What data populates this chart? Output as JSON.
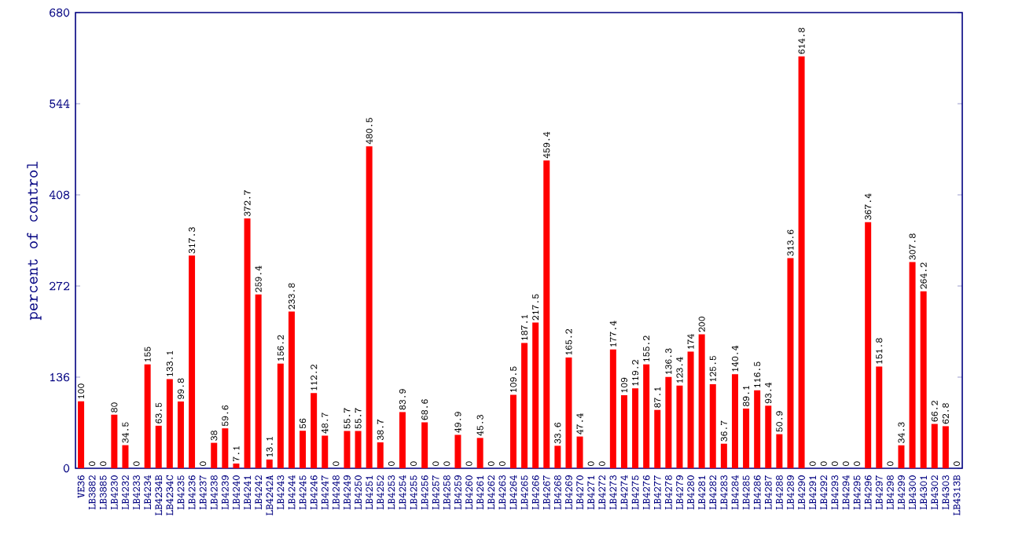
{
  "chart_data": {
    "type": "bar",
    "ylabel": "percent of control",
    "categories": [
      "VE36",
      "LB3882",
      "LB3885",
      "LB4230",
      "LB4232",
      "LB4233",
      "LB4234",
      "LB4234B",
      "LB4234C",
      "LB4235",
      "LB4236",
      "LB4237",
      "LB4238",
      "LB4239",
      "LB4240",
      "LB4241",
      "LB4242",
      "LB4242A",
      "LB4243",
      "LB4244",
      "LB4245",
      "LB4246",
      "LB4247",
      "LB4248",
      "LB4249",
      "LB4250",
      "LB4251",
      "LB4252",
      "LB4253",
      "LB4254",
      "LB4255",
      "LB4256",
      "LB4257",
      "LB4258",
      "LB4259",
      "LB4260",
      "LB4261",
      "LB4262",
      "LB4263",
      "LB4264",
      "LB4265",
      "LB4266",
      "LB4267",
      "LB4268",
      "LB4269",
      "LB4270",
      "LB4271",
      "LB4272",
      "LB4273",
      "LB4274",
      "LB4275",
      "LB4276",
      "LB4277",
      "LB4278",
      "LB4279",
      "LB4280",
      "LB4281",
      "LB4282",
      "LB4283",
      "LB4284",
      "LB4285",
      "LB4286",
      "LB4287",
      "LB4288",
      "LB4289",
      "LB4290",
      "LB4291",
      "LB4292",
      "LB4293",
      "LB4294",
      "LB4295",
      "LB4296",
      "LB4297",
      "LB4298",
      "LB4299",
      "LB4300",
      "LB4301",
      "LB4302",
      "LB4303",
      "LB4313B"
    ],
    "values": [
      100,
      0,
      0,
      80,
      34.5,
      0,
      155,
      63.5,
      133.1,
      99.8,
      317.3,
      0,
      38,
      59.6,
      7.1,
      372.7,
      259.4,
      13.1,
      156.2,
      233.8,
      56,
      112.2,
      48.7,
      0,
      55.7,
      55.7,
      480.5,
      38.7,
      0,
      83.9,
      0,
      68.6,
      0,
      0,
      49.9,
      0,
      45.3,
      0,
      0,
      109.5,
      187.1,
      217.5,
      459.4,
      33.6,
      165.2,
      47.4,
      0,
      0,
      177.4,
      109,
      119.2,
      155.2,
      87.1,
      136.3,
      123.4,
      174,
      200,
      125.5,
      36.7,
      140.4,
      89.1,
      116.5,
      93.4,
      50.9,
      313.6,
      614.8,
      0,
      0,
      0,
      0,
      0,
      367.4,
      151.8,
      0,
      34.3,
      307.8,
      264.2,
      66.2,
      62.8,
      0
    ],
    "color": "#ff0000",
    "ylim": [
      0,
      680
    ],
    "yticks": [
      0,
      136,
      272,
      408,
      544,
      680
    ],
    "data_labels": true
  }
}
